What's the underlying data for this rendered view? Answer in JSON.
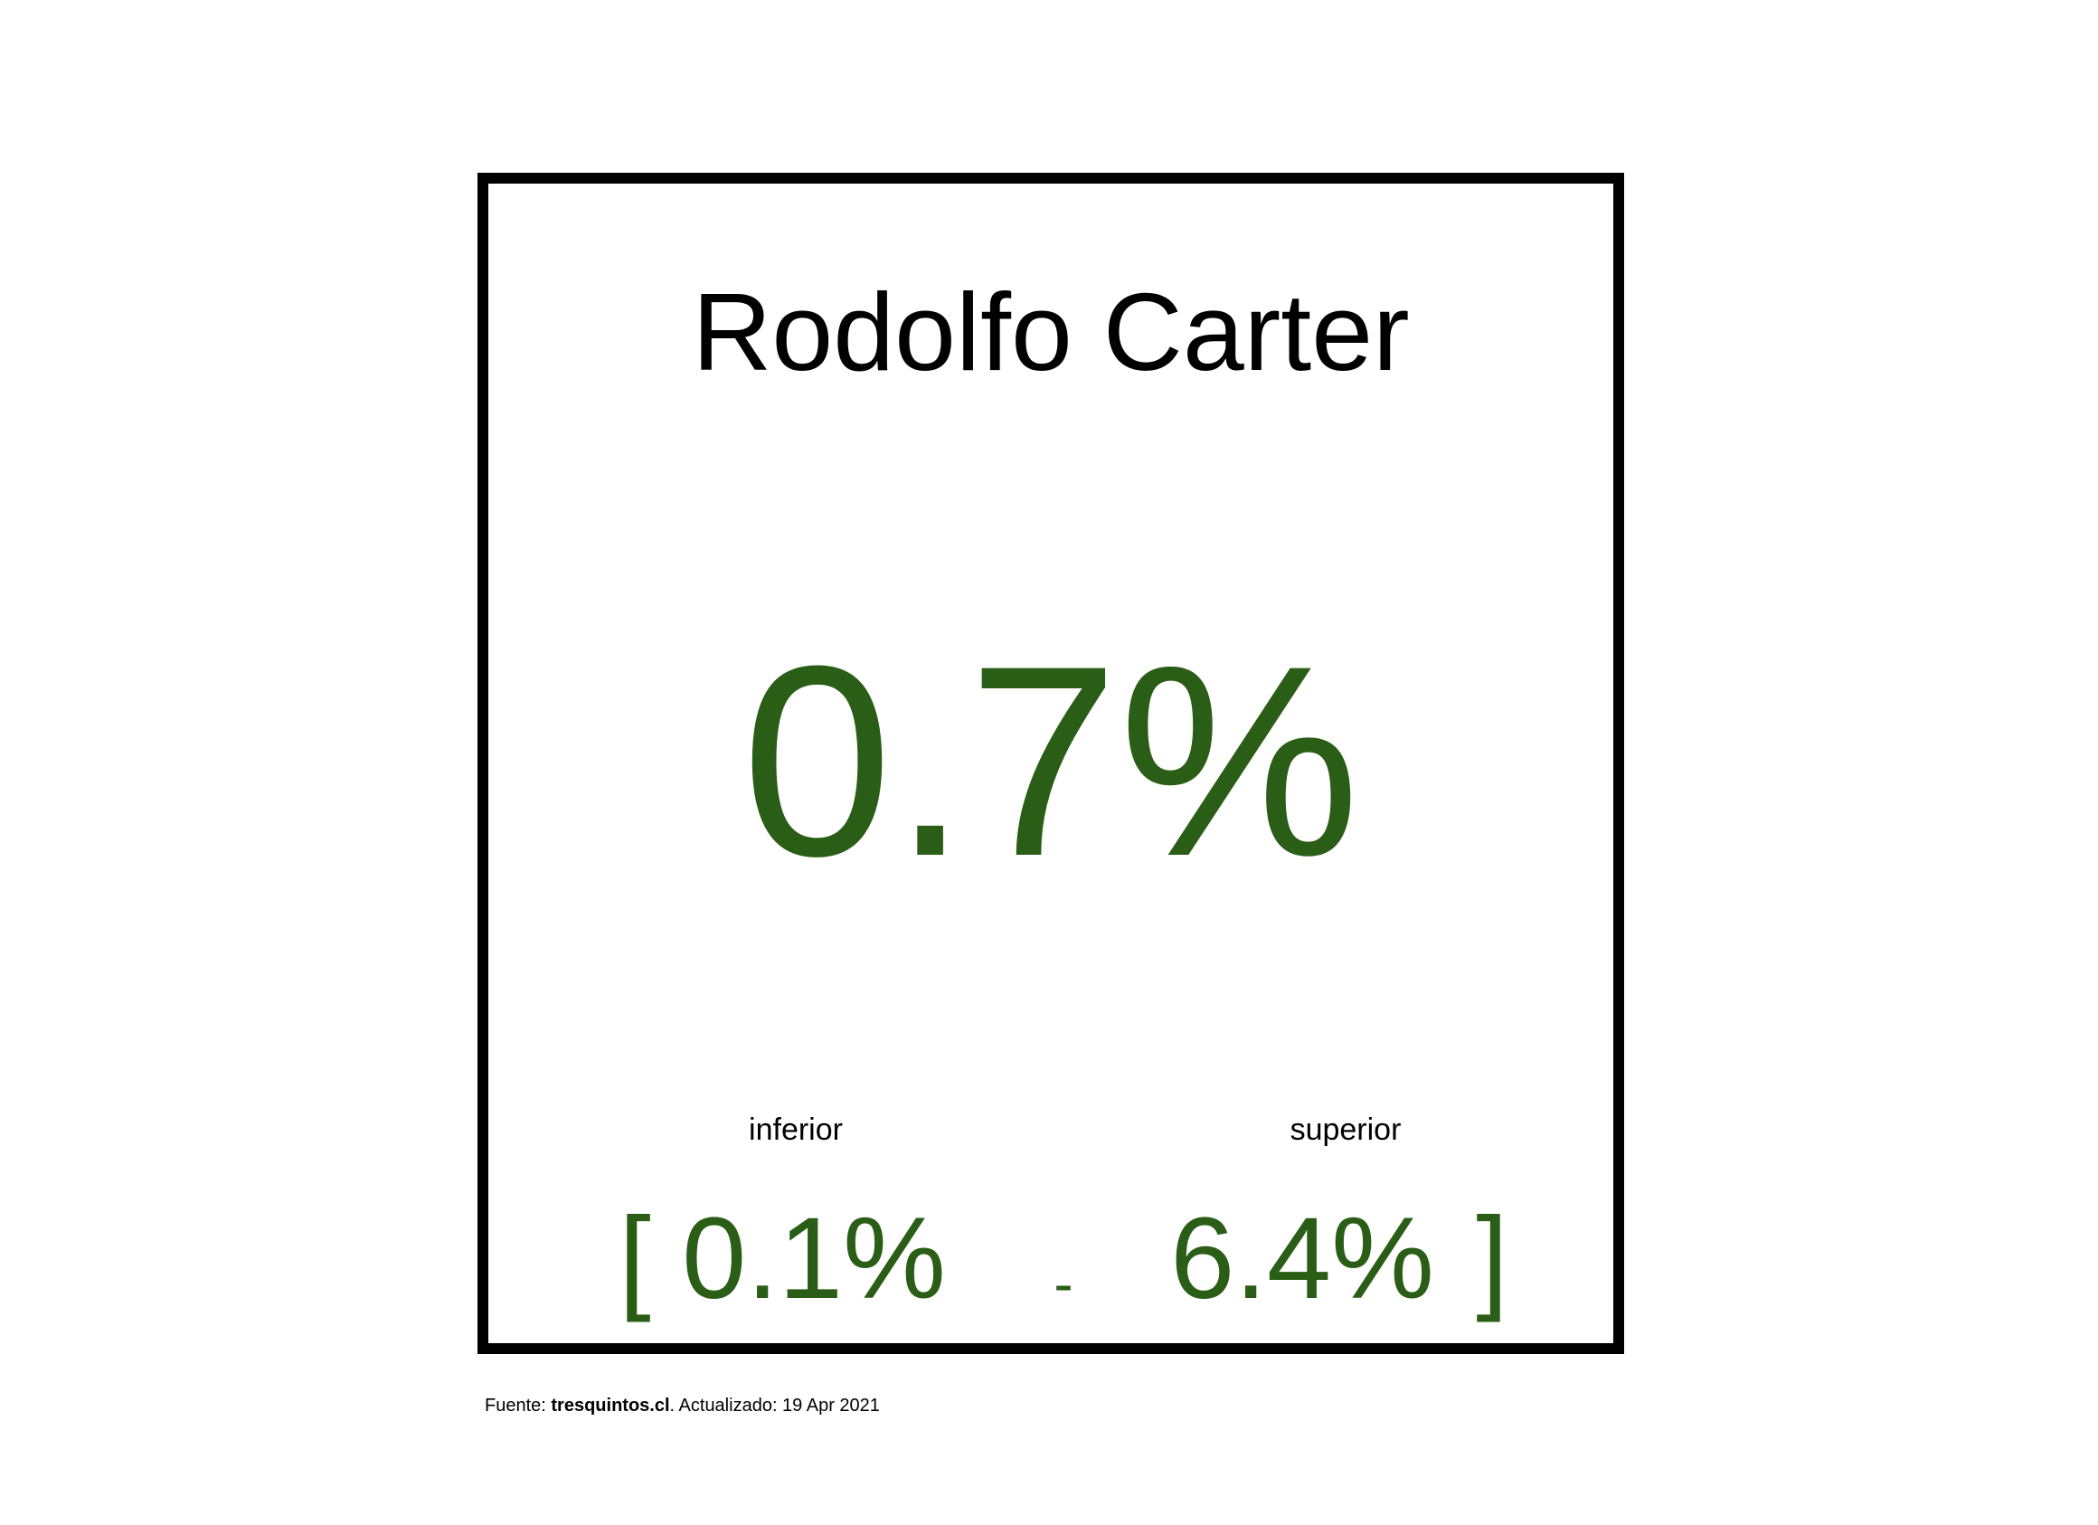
{
  "card": {
    "name": "Rodolfo Carter",
    "value": "0.7%",
    "lower_label": "inferior",
    "upper_label": "superior",
    "open_bracket": "[",
    "lower_value": "0.1%",
    "separator": "-",
    "upper_value": "6.4%",
    "close_bracket": "]"
  },
  "source": {
    "prefix": "Fuente: ",
    "site": "tresquintos.cl",
    "suffix": ". Actualizado: 19 Apr 2021"
  },
  "colors": {
    "value": "#2a5e16",
    "border": "#000000",
    "text": "#000000"
  }
}
